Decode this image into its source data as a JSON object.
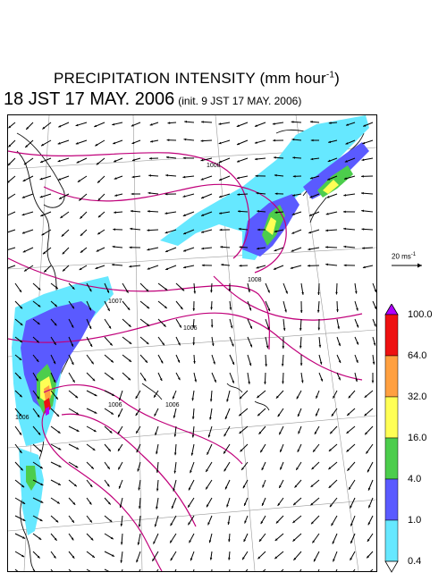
{
  "title": {
    "main": "PRECIPITATION INTENSITY (mm hour",
    "exp": "-1",
    "close": ")"
  },
  "valid_time": "18 JST 17 MAY. 2006",
  "init_time": "(init. 9 JST 17 MAY. 2006)",
  "wind_scale": {
    "label": "20 ms",
    "exp": "-1"
  },
  "colorbar": {
    "levels": [
      "0.4",
      "1.0",
      "4.0",
      "16.0",
      "32.0",
      "64.0",
      "100.0"
    ],
    "colors": [
      "#66e8ff",
      "#5a5aff",
      "#4ccd4c",
      "#ffff55",
      "#ffa040",
      "#ee1111",
      "#b000ff"
    ],
    "min_arrow_color": "#ffffff"
  },
  "isobars": {
    "color": "#c0007a",
    "labels": [
      "1008",
      "1008",
      "1007",
      "1006",
      "1006",
      "1006",
      "1006"
    ]
  }
}
